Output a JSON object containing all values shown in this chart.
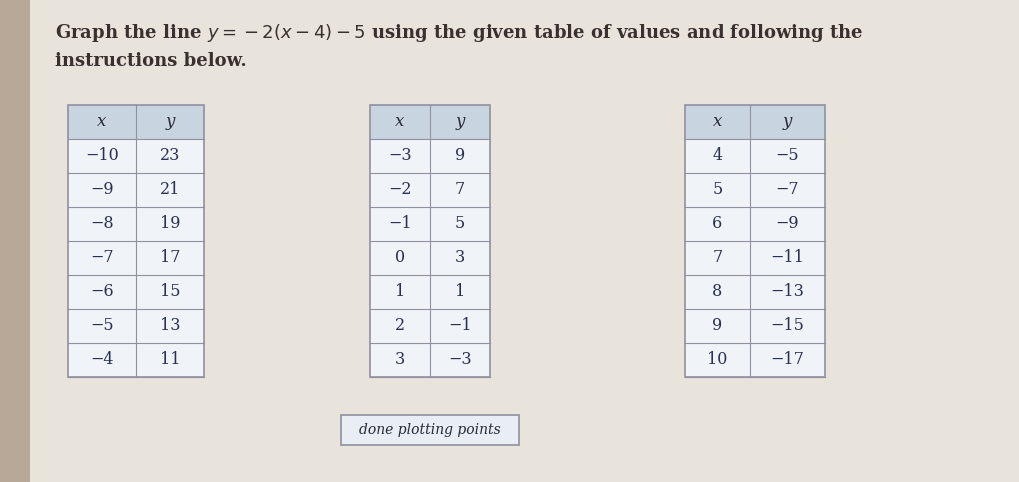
{
  "title_line1": "Graph the line y = −2(x − 4) − 5 using the given table of values and following the",
  "title_line2": "instructions below.",
  "bg_color": "#c8c8c8",
  "bg_right": "#dcdcd8",
  "left_bar_color": "#b0a090",
  "table_bg_header": "#c8d4e0",
  "table_bg_body": "#f0f4f8",
  "table_border": "#9090a0",
  "text_color": "#5a4a3a",
  "button_text": "done plotting points",
  "button_bg": "#e8eef4",
  "button_border": "#9090a0",
  "table1": {
    "headers": [
      "x",
      "y"
    ],
    "rows": [
      [
        "−10",
        "23"
      ],
      [
        "−9",
        "21"
      ],
      [
        "−8",
        "19"
      ],
      [
        "−7",
        "17"
      ],
      [
        "−6",
        "15"
      ],
      [
        "−5",
        "13"
      ],
      [
        "−4",
        "11"
      ]
    ]
  },
  "table2": {
    "headers": [
      "x",
      "y"
    ],
    "rows": [
      [
        "−3",
        "9"
      ],
      [
        "−2",
        "7"
      ],
      [
        "−1",
        "5"
      ],
      [
        "0",
        "3"
      ],
      [
        "1",
        "1"
      ],
      [
        "2",
        "−1"
      ],
      [
        "3",
        "−3"
      ]
    ]
  },
  "table3": {
    "headers": [
      "x",
      "y"
    ],
    "rows": [
      [
        "4",
        "−5"
      ],
      [
        "5",
        "−7"
      ],
      [
        "6",
        "−9"
      ],
      [
        "7",
        "−11"
      ],
      [
        "8",
        "−13"
      ],
      [
        "9",
        "−15"
      ],
      [
        "10",
        "−17"
      ]
    ]
  }
}
